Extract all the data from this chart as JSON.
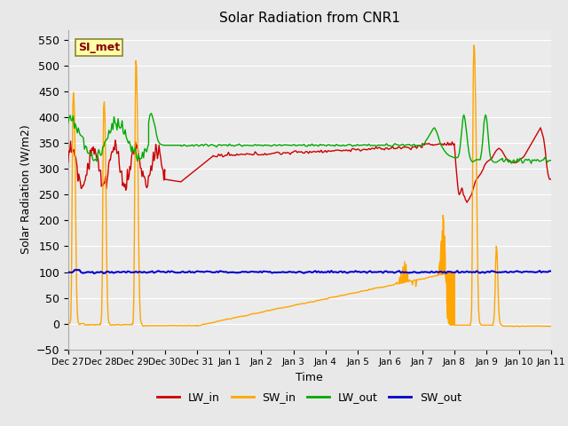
{
  "title": "Solar Radiation from CNR1",
  "xlabel": "Time",
  "ylabel": "Solar Radiation (W/m2)",
  "ylim": [
    -50,
    570
  ],
  "yticks": [
    -50,
    0,
    50,
    100,
    150,
    200,
    250,
    300,
    350,
    400,
    450,
    500,
    550
  ],
  "fig_bg_color": "#e8e8e8",
  "plot_bg_color": "#ebebeb",
  "grid_color": "#ffffff",
  "annotation_text": "SI_met",
  "annotation_box_facecolor": "#ffffaa",
  "annotation_box_edgecolor": "#888833",
  "annotation_text_color": "#880000",
  "colors": {
    "LW_in": "#cc0000",
    "SW_in": "#ffa500",
    "LW_out": "#00aa00",
    "SW_out": "#0000cc"
  },
  "xtick_labels": [
    "Dec 27",
    "Dec 28",
    "Dec 29",
    "Dec 30",
    "Dec 31",
    "Jan 1",
    "Jan 2",
    "Jan 3",
    "Jan 4",
    "Jan 5",
    "Jan 6",
    "Jan 7",
    "Jan 8",
    "Jan 9",
    "Jan 10",
    "Jan 11"
  ],
  "legend_labels": [
    "LW_in",
    "SW_in",
    "LW_out",
    "SW_out"
  ]
}
